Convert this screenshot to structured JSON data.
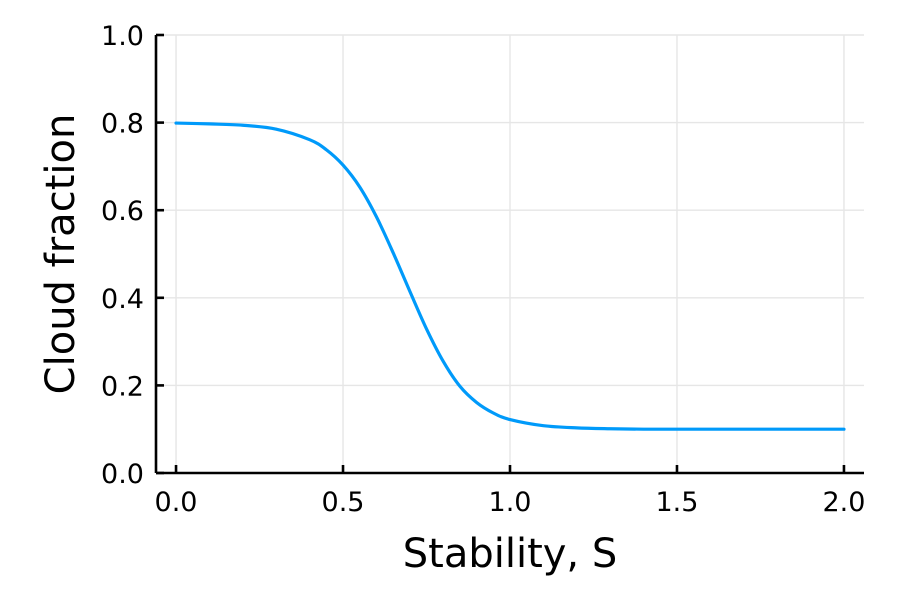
{
  "chart_data": {
    "type": "line",
    "title": "",
    "xlabel": "Stability, S",
    "ylabel": "Cloud fraction",
    "xlim": [
      -0.06,
      2.06
    ],
    "ylim": [
      0.0,
      1.0
    ],
    "xticks": [
      0.0,
      0.5,
      1.0,
      1.5,
      2.0
    ],
    "xtick_labels": [
      "0.0",
      "0.5",
      "1.0",
      "1.5",
      "2.0"
    ],
    "yticks": [
      0.0,
      0.2,
      0.4,
      0.6,
      0.8,
      1.0
    ],
    "ytick_labels": [
      "0.0",
      "0.2",
      "0.4",
      "0.6",
      "0.8",
      "1.0"
    ],
    "grid": true,
    "legend": "none",
    "series": [
      {
        "color": "#009AFA",
        "x": [
          0.0,
          0.1,
          0.2,
          0.3,
          0.4,
          0.45,
          0.5,
          0.55,
          0.6,
          0.65,
          0.7,
          0.75,
          0.8,
          0.85,
          0.9,
          0.95,
          1.0,
          1.1,
          1.2,
          1.3,
          1.4,
          1.5,
          1.6,
          1.7,
          1.8,
          1.9,
          2.0
        ],
        "y": [
          0.799,
          0.797,
          0.794,
          0.785,
          0.761,
          0.738,
          0.703,
          0.653,
          0.585,
          0.503,
          0.415,
          0.329,
          0.255,
          0.198,
          0.161,
          0.137,
          0.122,
          0.108,
          0.103,
          0.101,
          0.1,
          0.1,
          0.1,
          0.1,
          0.1,
          0.1,
          0.1
        ]
      }
    ]
  }
}
